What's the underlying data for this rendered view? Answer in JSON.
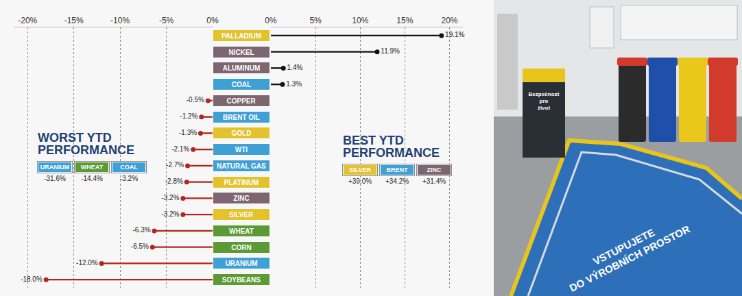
{
  "chart_data": {
    "type": "bar",
    "orientation": "horizontal",
    "categories": [
      "PALLADIUM",
      "NICKEL",
      "ALUMINUM",
      "COAL",
      "COPPER",
      "BRENT OIL",
      "GOLD",
      "WTI",
      "NATURAL GAS",
      "PLATINUM",
      "ZINC",
      "SILVER",
      "WHEAT",
      "CORN",
      "URANIUM",
      "SOYBEANS"
    ],
    "values": [
      19.1,
      11.9,
      1.4,
      1.3,
      -0.5,
      -1.2,
      -1.3,
      -2.1,
      -2.7,
      -2.8,
      -3.2,
      -3.2,
      -6.3,
      -6.5,
      -12.0,
      -18.0
    ],
    "value_labels": [
      "19.1%",
      "11.9%",
      "1.4%",
      "1.3%",
      "-0.5%",
      "-1.2%",
      "-1.3%",
      "-2.1%",
      "-2.7%",
      "-2.8%",
      "-3.2%",
      "-3.2%",
      "-6.3%",
      "-6.5%",
      "-12.0%",
      "-18.0%"
    ],
    "colors": [
      "#e3c22c",
      "#7d6670",
      "#7d6670",
      "#3fa0d6",
      "#7d6670",
      "#3fa0d6",
      "#e3c22c",
      "#3fa0d6",
      "#3fa0d6",
      "#e3c22c",
      "#7d6670",
      "#e3c22c",
      "#5c9a35",
      "#5c9a35",
      "#3fa0d6",
      "#5c9a35"
    ],
    "data_labels": true,
    "grid": true,
    "xlim": [
      -21.5,
      21.5
    ],
    "xticks": [
      {
        "value": -20,
        "label": "-20%"
      },
      {
        "value": -15,
        "label": "-15%"
      },
      {
        "value": -10,
        "label": "-10%"
      },
      {
        "value": -5,
        "label": "-5%"
      },
      {
        "value": 0,
        "label": "0%"
      },
      {
        "value": 0,
        "label": "0%"
      },
      {
        "value": 5,
        "label": "5%"
      },
      {
        "value": 10,
        "label": "10%"
      },
      {
        "value": 15,
        "label": "15%"
      },
      {
        "value": 20,
        "label": "20%"
      }
    ],
    "annotations": [
      {
        "title": "WORST YTD PERFORMANCE",
        "items": [
          {
            "name": "URANIUM",
            "text": "-31.6%",
            "color": "#3fa0d6"
          },
          {
            "name": "WHEAT",
            "text": "-14.4%",
            "color": "#5c9a35"
          },
          {
            "name": "COAL",
            "text": "-3.2%",
            "color": "#3fa0d6"
          }
        ]
      },
      {
        "title": "BEST YTD PERFORMANCE",
        "items": [
          {
            "name": "SILVER",
            "text": "+39.0%",
            "color": "#e3c22c"
          },
          {
            "name": "BRENT",
            "text": "+34.2%",
            "color": "#3fa0d6"
          },
          {
            "name": "ZINC",
            "text": "+31.4%",
            "color": "#7d6670"
          }
        ]
      }
    ]
  },
  "photo": {
    "floor_text": [
      "VSTUPUJETE",
      "DO VÝROBNÍCH PROSTOR"
    ],
    "sign_text": "Bezpečnost pro život"
  }
}
